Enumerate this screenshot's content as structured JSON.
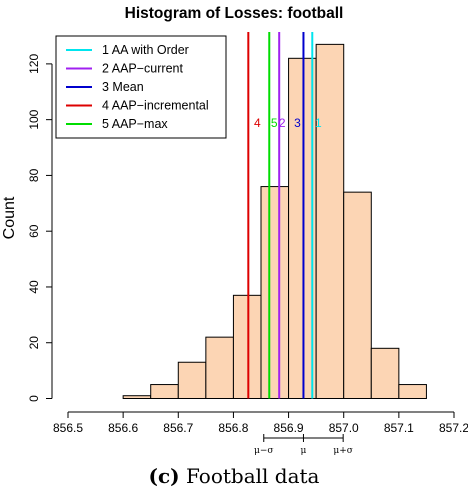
{
  "chart_data": {
    "type": "bar",
    "title": "Histogram of Losses: football",
    "xlabel": "",
    "ylabel": "Count",
    "xlim": [
      856.5,
      857.2
    ],
    "ylim": [
      0,
      128
    ],
    "x_ticks": [
      "856.5",
      "856.6",
      "856.7",
      "856.8",
      "856.9",
      "857.0",
      "857.1",
      "857.2"
    ],
    "y_ticks": [
      "0",
      "20",
      "40",
      "60",
      "80",
      "100",
      "120"
    ],
    "bin_width": 0.05,
    "bins": [
      {
        "start": 856.6,
        "count": 1
      },
      {
        "start": 856.65,
        "count": 5
      },
      {
        "start": 856.7,
        "count": 13
      },
      {
        "start": 856.75,
        "count": 22
      },
      {
        "start": 856.8,
        "count": 37
      },
      {
        "start": 856.85,
        "count": 76
      },
      {
        "start": 856.9,
        "count": 122
      },
      {
        "start": 856.95,
        "count": 127
      },
      {
        "start": 857.0,
        "count": 74
      },
      {
        "start": 857.05,
        "count": 18
      },
      {
        "start": 857.1,
        "count": 5
      }
    ],
    "bar_color": "#fcd5b4",
    "vlines": [
      {
        "label": "1",
        "legend": "1 AA with Order",
        "x": 856.943,
        "color": "#00e5ee"
      },
      {
        "label": "2",
        "legend": "2 AAP−current",
        "x": 856.883,
        "color": "#a020f0"
      },
      {
        "label": "3",
        "legend": "3 Mean",
        "x": 856.927,
        "color": "#0000cd"
      },
      {
        "label": "4",
        "legend": "4 AAP−incremental",
        "x": 856.827,
        "color": "#dd0000"
      },
      {
        "label": "5",
        "legend": "5 AAP−max",
        "x": 856.865,
        "color": "#00dd00"
      }
    ],
    "legend_position": "top-left",
    "sigma_bracket": {
      "mu": 856.927,
      "sigma": 0.072,
      "labels": [
        "μ−σ",
        "μ",
        "μ+σ"
      ]
    }
  },
  "caption": {
    "label": "(c)",
    "text": " Football data"
  }
}
